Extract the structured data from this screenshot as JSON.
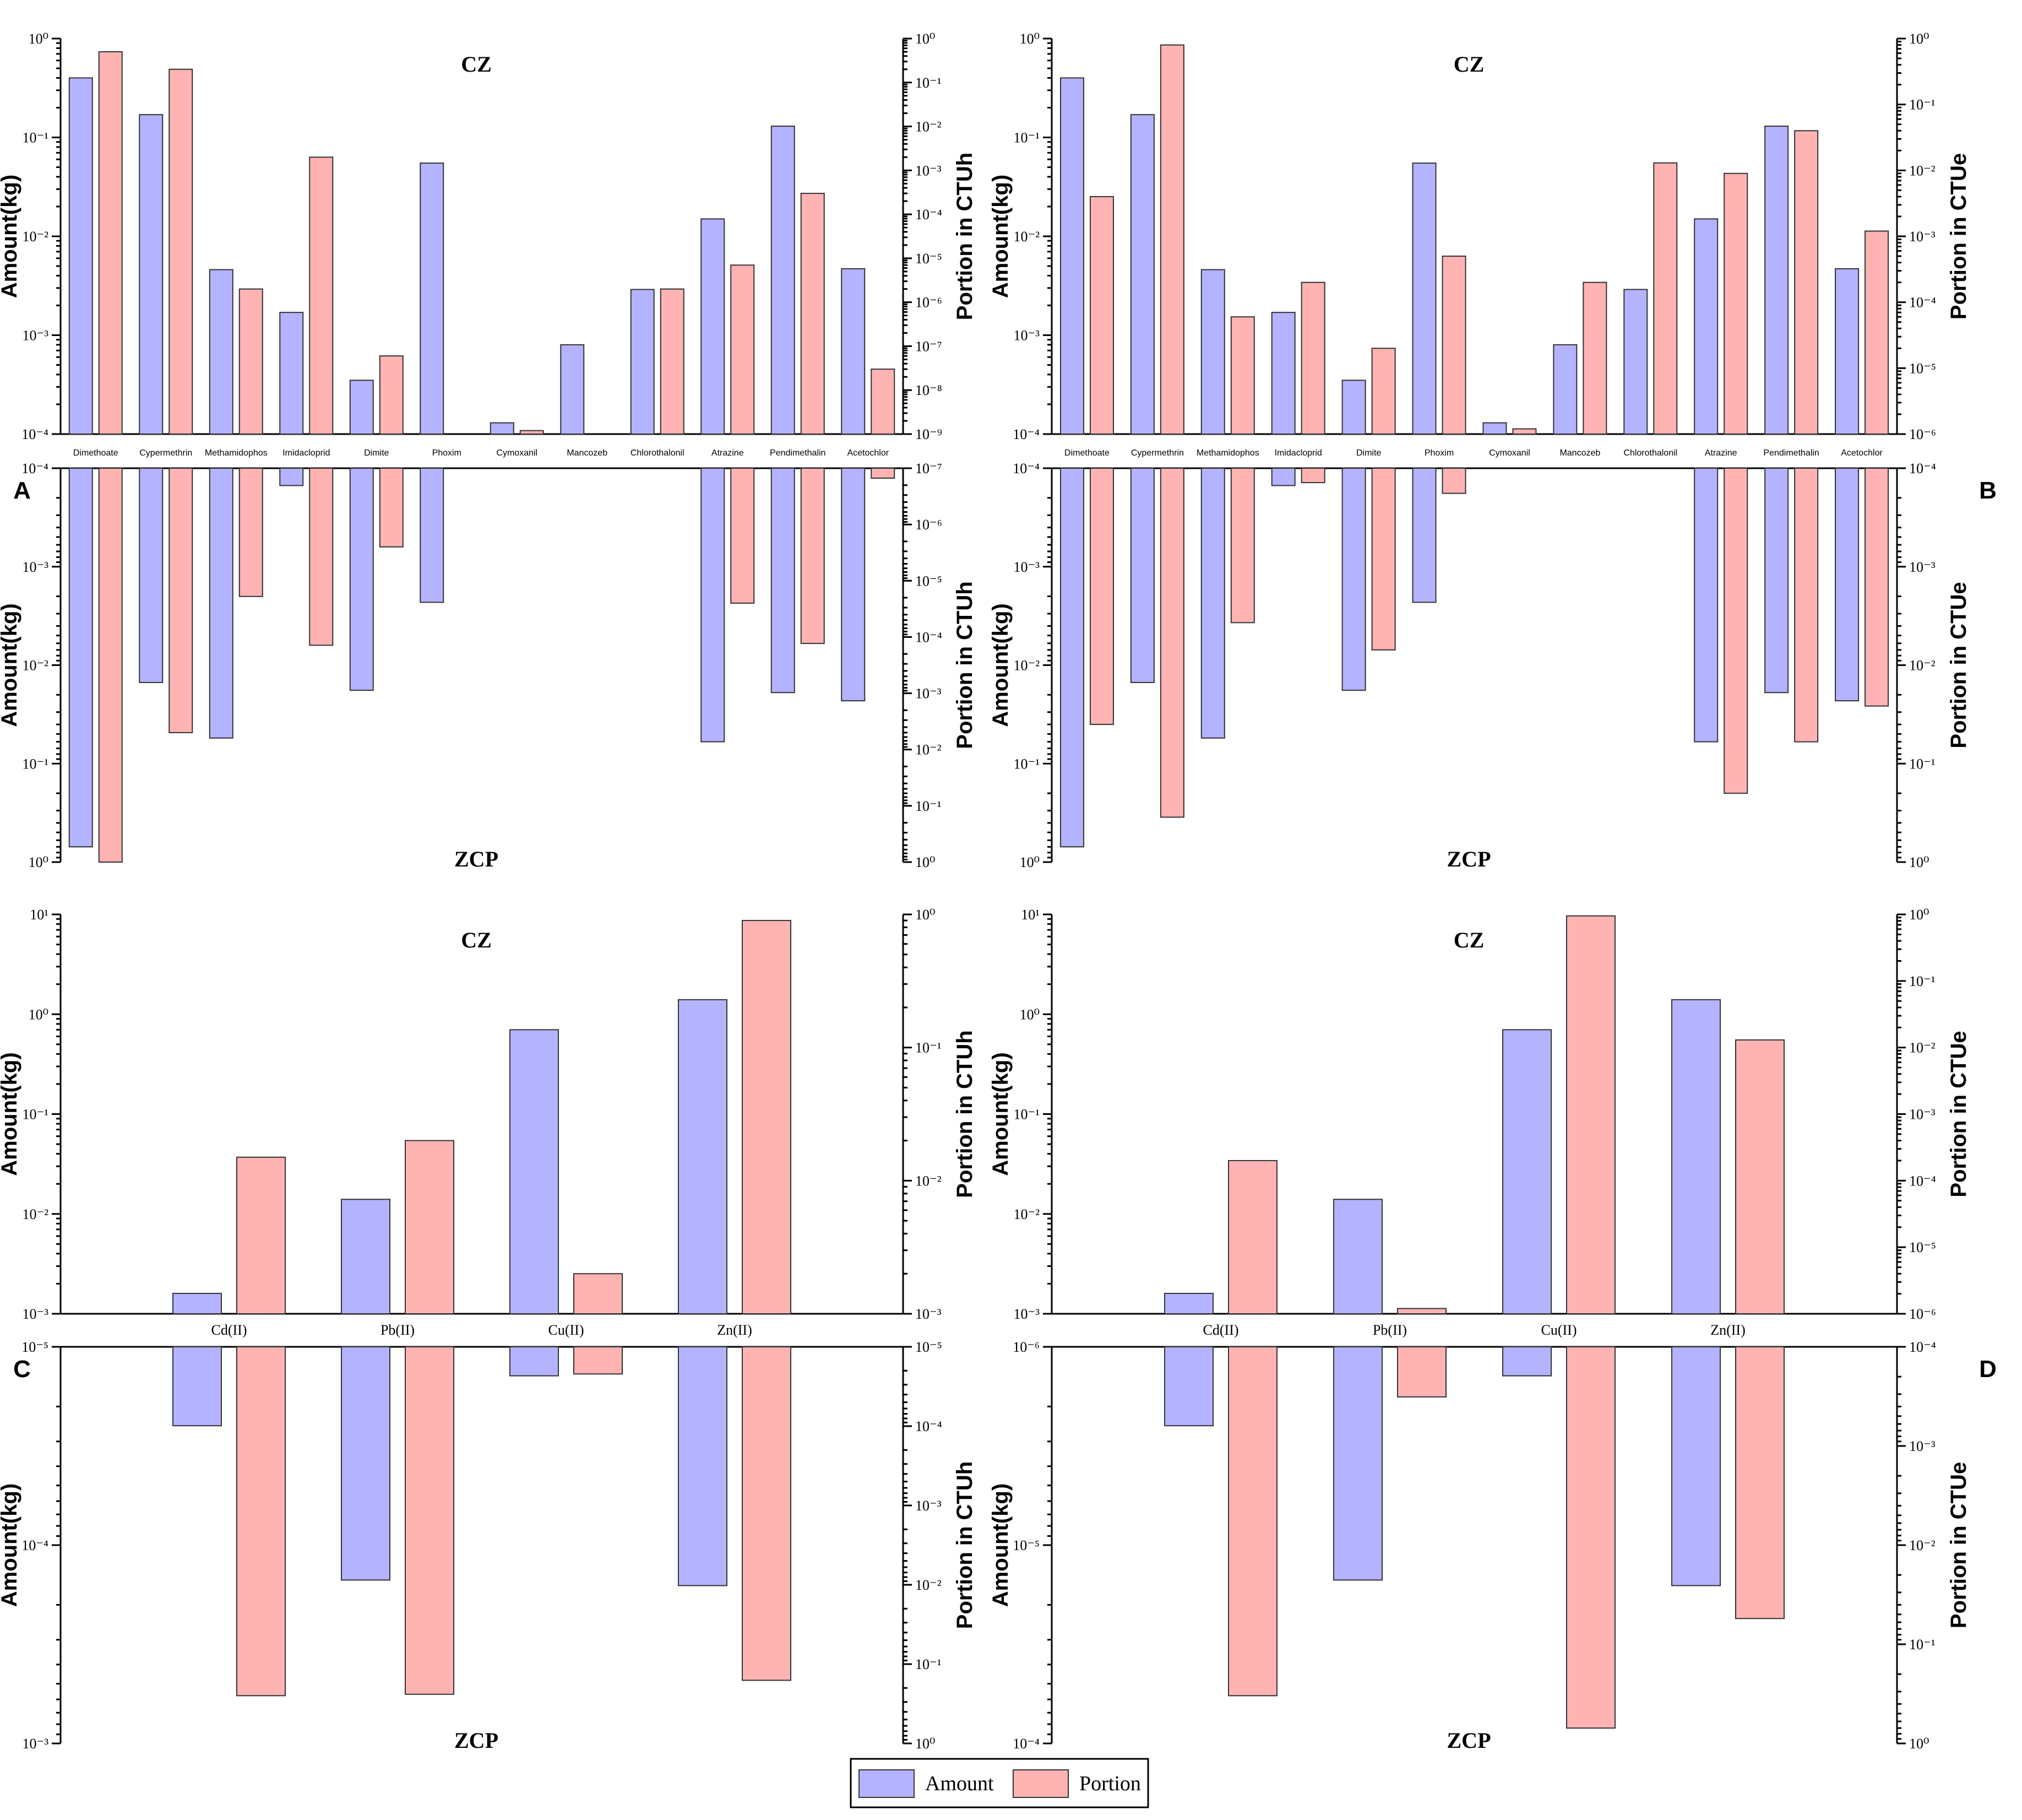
{
  "colors": {
    "amount": "#b3b3ff",
    "portion": "#ffb3b3",
    "edge": "#333333"
  },
  "legend": {
    "amount": "Amount",
    "portion": "Portion"
  },
  "chart_data": [
    {
      "panel": "A",
      "type": "bar",
      "categories": [
        "Dimethoate",
        "Cypermethrin",
        "Methamidophos",
        "Imidacloprid",
        "Dimite",
        "Phoxim",
        "Cymoxanil",
        "Mancozeb",
        "Chlorothalonil",
        "Atrazine",
        "Pendimethalin",
        "Acetochlor"
      ],
      "top": {
        "region": "CZ",
        "ylabel_left": "Amount(kg)",
        "ylabel_right": "Portion in CTUh",
        "left_exp_range": [
          -4,
          0
        ],
        "right_exp_range": [
          -9,
          0
        ],
        "amount": [
          0.4,
          0.17,
          0.0046,
          0.0017,
          0.00035,
          0.055,
          0.00013,
          0.0008,
          0.0029,
          0.015,
          0.13,
          0.0047
        ],
        "portion": [
          0.5,
          0.2,
          2e-06,
          0.002,
          6e-08,
          null,
          1.2e-09,
          null,
          2e-06,
          7e-06,
          0.0003,
          3e-08
        ]
      },
      "bottom": {
        "region": "ZCP",
        "ylabel_left": "Amount(kg)",
        "ylabel_right": "Portion in CTUh",
        "left_exp_range": [
          -4,
          0
        ],
        "right_exp_range": [
          -7,
          0
        ],
        "amount": [
          0.7,
          0.015,
          0.055,
          0.00015,
          0.018,
          0.0023,
          null,
          null,
          null,
          0.06,
          0.019,
          0.023
        ],
        "portion": [
          1.0,
          0.005,
          1.9e-05,
          0.00014,
          2.5e-06,
          null,
          null,
          null,
          null,
          2.5e-05,
          0.00013,
          1.5e-07
        ]
      }
    },
    {
      "panel": "B",
      "type": "bar",
      "categories": [
        "Dimethoate",
        "Cypermethrin",
        "Methamidophos",
        "Imidacloprid",
        "Dimite",
        "Phoxim",
        "Cymoxanil",
        "Mancozeb",
        "Chlorothalonil",
        "Atrazine",
        "Pendimethalin",
        "Acetochlor"
      ],
      "top": {
        "region": "CZ",
        "ylabel_left": "Amount(kg)",
        "ylabel_right": "Portion in CTUe",
        "left_exp_range": [
          -4,
          0
        ],
        "right_exp_range": [
          -6,
          0
        ],
        "amount": [
          0.4,
          0.17,
          0.0046,
          0.0017,
          0.00035,
          0.055,
          0.00013,
          0.0008,
          0.0029,
          0.015,
          0.13,
          0.0047
        ],
        "portion": [
          0.004,
          0.8,
          6e-05,
          0.0002,
          2e-05,
          0.0005,
          1.2e-06,
          0.0002,
          0.013,
          0.009,
          0.04,
          0.0012
        ]
      },
      "bottom": {
        "region": "ZCP",
        "ylabel_left": "Amount(kg)",
        "ylabel_right": "Portion in CTUe",
        "left_exp_range": [
          -4,
          0
        ],
        "right_exp_range": [
          -4,
          0
        ],
        "amount": [
          0.7,
          0.015,
          0.055,
          0.00015,
          0.018,
          0.0023,
          null,
          null,
          null,
          0.06,
          0.019,
          0.023
        ],
        "portion": [
          0.04,
          0.35,
          0.0037,
          0.00014,
          0.007,
          0.00018,
          null,
          null,
          null,
          0.2,
          0.06,
          0.026
        ]
      }
    },
    {
      "panel": "C",
      "type": "bar",
      "categories": [
        "Cd(II)",
        "Pb(II)",
        "Cu(II)",
        "Zn(II)"
      ],
      "top": {
        "region": "CZ",
        "ylabel_left": "Amount(kg)",
        "ylabel_right": "Portion in CTUh",
        "left_exp_range": [
          -3,
          1
        ],
        "right_exp_range": [
          -3,
          0
        ],
        "amount": [
          0.0016,
          0.014,
          0.7,
          1.4
        ],
        "portion": [
          0.015,
          0.02,
          0.002,
          0.9
        ]
      },
      "bottom": {
        "region": "ZCP",
        "ylabel_left": "Amount(kg)",
        "ylabel_right": "Portion in CTUh",
        "left_exp_range": [
          -5,
          -3
        ],
        "right_exp_range": [
          -5,
          0
        ],
        "amount": [
          2.5e-05,
          0.00015,
          1.4e-05,
          0.00016
        ],
        "portion": [
          0.25,
          0.24,
          2.2e-05,
          0.16
        ]
      }
    },
    {
      "panel": "D",
      "type": "bar",
      "categories": [
        "Cd(II)",
        "Pb(II)",
        "Cu(II)",
        "Zn(II)"
      ],
      "top": {
        "region": "CZ",
        "ylabel_left": "Amount(kg)",
        "ylabel_right": "Portion in CTUe",
        "left_exp_range": [
          -3,
          1
        ],
        "right_exp_range": [
          -6,
          0
        ],
        "amount": [
          0.0016,
          0.014,
          0.7,
          1.4
        ],
        "portion": [
          0.0002,
          1.2e-06,
          0.95,
          0.013
        ]
      },
      "bottom": {
        "region": "ZCP",
        "ylabel_left": "Amount(kg)",
        "ylabel_right": "Portion in CTUe",
        "left_exp_range": [
          -6,
          -4
        ],
        "right_exp_range": [
          -4,
          0
        ],
        "amount": [
          2.5e-06,
          1.5e-05,
          1.4e-06,
          1.6e-05
        ],
        "portion": [
          0.33,
          0.00032,
          0.7,
          0.055
        ]
      }
    }
  ]
}
